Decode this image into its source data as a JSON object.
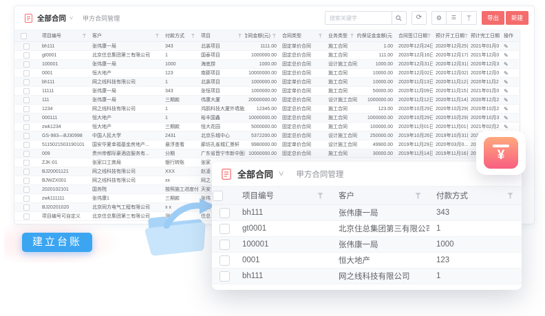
{
  "header": {
    "title": "全部合同",
    "subtitle": "甲方合同管理"
  },
  "toolbar": {
    "search_placeholder": "搜索关键字",
    "export_label": "导出",
    "new_label": "新建"
  },
  "icons": {
    "refresh": "⟳",
    "settings": "⚙",
    "list": "☰",
    "chevron": "∨",
    "edit": "✎",
    "yen": "¥"
  },
  "colors": {
    "accent_red": "#f56c6c",
    "link_blue": "#55aff2",
    "button_blue": "#3ba5f2",
    "yen_gradient_top": "#ffa97e",
    "yen_gradient_bottom": "#f85f80",
    "folder_blue": "#c8e5fb"
  },
  "table": {
    "columns": [
      {
        "label": "项目编号",
        "filter": true
      },
      {
        "label": "客户",
        "filter": true
      },
      {
        "label": "付款方式",
        "filter": true
      },
      {
        "label": "项目",
        "filter": true
      },
      {
        "label": "合同金额(元)",
        "filter": true
      },
      {
        "label": "合同类型",
        "filter": true
      },
      {
        "label": "业务类型",
        "filter": true
      },
      {
        "label": "履约保证金金额(元",
        "filter": false
      },
      {
        "label": "合同签订日期",
        "filter": true
      },
      {
        "label": "预计开工日期",
        "filter": true
      },
      {
        "label": "预计完工日期",
        "filter": false
      },
      {
        "label": "操作",
        "filter": false
      }
    ],
    "rows": [
      {
        "id": "bh111",
        "customer": "张伟康一局",
        "payment": "343",
        "project": "北装项目",
        "amount": "1111.00",
        "contract_type": "固定单价合同",
        "business_type": "施工合同",
        "bond": "1.00",
        "sign_date": "2020年12月24日",
        "start_date": "2020年12月25日",
        "end_date": "2021年01月0",
        "op": true
      },
      {
        "id": "gt0001",
        "customer": "北京住总集团第三有限公司",
        "payment": "1",
        "project": "国泰项目",
        "amount": "1000000.00",
        "contract_type": "固定总价合同",
        "business_type": "施工合同",
        "bond": "111.00",
        "sign_date": "2020年12月16日",
        "start_date": "2020年12月17日",
        "end_date": "2021年12月0",
        "op": true
      },
      {
        "id": "100001",
        "customer": "张伟康一局",
        "payment": "1000",
        "project": "海底捞",
        "amount": "1000.00",
        "contract_type": "固定总价合同",
        "business_type": "设计施工合同",
        "bond": "1000.00",
        "sign_date": "2020年12月31日",
        "start_date": "2020年12月31日",
        "end_date": "2020年12月3",
        "op": true
      },
      {
        "id": "0001",
        "customer": "恒大地产",
        "payment": "123",
        "project": "南郡项目",
        "amount": "10000000.00",
        "contract_type": "固定总价合同",
        "business_type": "施工合同",
        "bond": "10000.00",
        "sign_date": "2020年12月02日",
        "start_date": "2020年12月02日",
        "end_date": "2020年12月0",
        "op": true
      },
      {
        "id": "bh111",
        "customer": "网之线科技有限公司",
        "payment": "1",
        "project": "北装项目",
        "amount": "1000000.00",
        "contract_type": "固定单价合同",
        "business_type": "施工合同",
        "bond": "10000.00",
        "sign_date": "2020年11月13日",
        "start_date": "2020年11月12日",
        "end_date": "2020年11月2",
        "op": true
      },
      {
        "id": "11111",
        "customer": "张伟康一局",
        "payment": "343",
        "project": "张恒项目",
        "amount": "1000000.00",
        "contract_type": "固定单价合同",
        "business_type": "施工合同",
        "bond": "50000.00",
        "sign_date": "2020年11月09日",
        "start_date": "2020年11月15日",
        "end_date": "2021年01月0",
        "op": true
      },
      {
        "id": "111",
        "customer": "张伟康一局",
        "payment": "三期款",
        "project": "伟康大厦",
        "amount": "20000000.00",
        "contract_type": "固定总价合同",
        "business_type": "设计施工合同",
        "bond": "1000000.00",
        "sign_date": "2020年11月12日",
        "start_date": "2020年11月14日",
        "end_date": "2020年12月2",
        "op": true
      },
      {
        "id": "1234",
        "customer": "网之线科技有限公司",
        "payment": "1",
        "project": "鸿鹄科技大厦外墙施工项目",
        "amount": "12345.00",
        "contract_type": "固定总价合同",
        "business_type": "施工合同",
        "bond": "123.00",
        "sign_date": "2020年10月29日",
        "start_date": "2020年10月29日",
        "end_date": "2020年10月2",
        "op": true
      },
      {
        "id": "000111",
        "customer": "恒大地产",
        "payment": "1",
        "project": "裕丰国鑫",
        "amount": "10000000.00",
        "contract_type": "固定总价合同",
        "business_type": "施工合同",
        "bond": "1000000.00",
        "sign_date": "2020年10月29日",
        "start_date": "2020年10月29日",
        "end_date": "2020年10月3",
        "op": true
      },
      {
        "id": "zwk1234",
        "customer": "恒大地产",
        "payment": "三期款",
        "project": "恒大花园",
        "amount": "5000000.00",
        "contract_type": "固定总价合同",
        "business_type": "施工合同",
        "bond": "100000.00",
        "sign_date": "2020年11月01日",
        "start_date": "2020年11月01日",
        "end_date": "2021年02月2",
        "op": true
      },
      {
        "id": "GS-983—BJ30998",
        "customer": "中国人民大学",
        "payment": "2431",
        "project": "北京乐城中心",
        "amount": "5372200.00",
        "contract_type": "固定总价合同",
        "business_type": "设计施工合同",
        "bond": "250000.00",
        "sign_date": "2019年10月26日",
        "start_date": "2019年10月31日",
        "end_date": "202",
        "op": false
      },
      {
        "id": "5115021503190101",
        "customer": "国安华夏幸福基金房地产...",
        "payment": "悬浮查看",
        "project": "廊坊孔雀城汇景轩",
        "amount": "9980000.00",
        "contract_type": "固定单价合同",
        "business_type": "设计施工合同",
        "bond": "49900.00",
        "sign_date": "2019年11月29日",
        "start_date": "2020年03月0...",
        "end_date": "202",
        "op": false
      },
      {
        "id": "009",
        "customer": "贵州帝都际豪酒店服务有...",
        "payment": "分期",
        "project": "广东省晋宁市新中医医院...",
        "amount": "10000000.00",
        "contract_type": "固定总价合同",
        "business_type": "施工合同",
        "bond": "30000.00",
        "sign_date": "2019年11月14日",
        "start_date": "2019年11月16日",
        "end_date": "202",
        "op": false
      },
      {
        "id": "ZJK-01",
        "customer": "张家口工商局",
        "payment": "银行转账",
        "project": "张家",
        "amount": "",
        "contract_type": "",
        "business_type": "",
        "bond": "",
        "sign_date": "",
        "start_date": "",
        "end_date": "",
        "op": false
      },
      {
        "id": "BJ20001121",
        "customer": "网之线科技有限公司",
        "payment": "XXX",
        "project": "赵凌",
        "amount": "",
        "contract_type": "",
        "business_type": "",
        "bond": "",
        "sign_date": "",
        "start_date": "",
        "end_date": "",
        "op": false
      },
      {
        "id": "BJWZX001",
        "customer": "网之线科技有限公司",
        "payment": "xx",
        "project": "网之",
        "amount": "",
        "contract_type": "",
        "business_type": "",
        "bond": "",
        "sign_date": "",
        "start_date": "",
        "end_date": "",
        "op": false
      },
      {
        "id": "2020102101",
        "customer": "国务院",
        "payment": "按照施工进度付款",
        "project": "天安",
        "amount": "",
        "contract_type": "",
        "business_type": "",
        "bond": "",
        "sign_date": "",
        "start_date": "",
        "end_date": "",
        "op": false
      },
      {
        "id": "zwk111111",
        "customer": "张伟康1",
        "payment": "三期款",
        "project": "张伟",
        "amount": "",
        "contract_type": "",
        "business_type": "",
        "bond": "",
        "sign_date": "",
        "start_date": "",
        "end_date": "",
        "op": false
      },
      {
        "id": "BJ20201020",
        "customer": "北京同方电气工程有限公司",
        "payment": "x x",
        "project": "赵凌",
        "amount": "",
        "contract_type": "",
        "business_type": "",
        "bond": "",
        "sign_date": "",
        "start_date": "",
        "end_date": "",
        "op": false
      },
      {
        "id": "项目编号可自定义",
        "customer": "北京住总集团第三有限公司",
        "payment": "测试",
        "project": "住总",
        "amount": "",
        "contract_type": "",
        "business_type": "",
        "bond": "",
        "sign_date": "",
        "start_date": "",
        "end_date": "",
        "op": false
      }
    ]
  },
  "overlay": {
    "title": "全部合同",
    "subtitle": "甲方合同管理",
    "columns": [
      {
        "label": "项目编号",
        "filter": true
      },
      {
        "label": "客户",
        "filter": true
      },
      {
        "label": "付款方式",
        "filter": true
      }
    ],
    "rows": [
      {
        "id": "bh111",
        "customer": "张伟康一局",
        "payment": "343"
      },
      {
        "id": "gt0001",
        "customer": "北京住总集团第三有限公司",
        "payment": "1"
      },
      {
        "id": "100001",
        "customer": "张伟康一局",
        "payment": "1000"
      },
      {
        "id": "0001",
        "customer": "恒大地产",
        "payment": "123"
      },
      {
        "id": "bh111",
        "customer": "网之线科技有限公司",
        "payment": "1"
      }
    ]
  },
  "callout": {
    "label": "建立台账"
  }
}
